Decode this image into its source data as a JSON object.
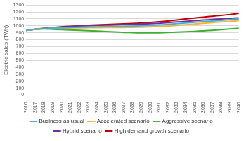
{
  "chart_data": {
    "type": "line",
    "y_label": "Electric sales (TWh)",
    "categories": [
      "2016",
      "2017",
      "2018",
      "2019",
      "2020",
      "2021",
      "2022",
      "2023",
      "2024",
      "2025",
      "2026",
      "2027",
      "2028",
      "2029",
      "2030",
      "2031",
      "2032",
      "2033",
      "2034",
      "2035",
      "2036",
      "2037",
      "2038",
      "2039",
      "2040"
    ],
    "series": [
      {
        "name": "Business as usual",
        "color": "#4bacd6",
        "values": [
          935,
          950,
          960,
          965,
          970,
          975,
          980,
          983,
          985,
          988,
          990,
          993,
          996,
          1000,
          1005,
          1012,
          1020,
          1030,
          1040,
          1050,
          1060,
          1070,
          1080,
          1090,
          1100
        ]
      },
      {
        "name": "Accelerated scenario",
        "color": "#f5b731",
        "values": [
          935,
          950,
          958,
          962,
          965,
          968,
          970,
          972,
          973,
          974,
          975,
          976,
          978,
          980,
          985,
          990,
          998,
          1005,
          1015,
          1025,
          1035,
          1045,
          1055,
          1065,
          1075
        ]
      },
      {
        "name": "Aggressive scenario",
        "color": "#3cb034",
        "values": [
          935,
          950,
          955,
          950,
          945,
          940,
          935,
          930,
          925,
          918,
          912,
          905,
          902,
          898,
          898,
          900,
          905,
          910,
          915,
          920,
          928,
          935,
          945,
          955,
          965
        ]
      },
      {
        "name": "Hybrid scenario",
        "color": "#7030a0",
        "values": [
          935,
          950,
          962,
          972,
          980,
          988,
          995,
          1000,
          1005,
          1010,
          1013,
          1017,
          1020,
          1025,
          1030,
          1037,
          1045,
          1055,
          1065,
          1075,
          1083,
          1092,
          1100,
          1108,
          1115
        ]
      },
      {
        "name": "High demand growth scenario",
        "color": "#c00000",
        "values": [
          935,
          950,
          962,
          975,
          985,
          993,
          1000,
          1008,
          1013,
          1018,
          1023,
          1028,
          1033,
          1040,
          1048,
          1058,
          1070,
          1085,
          1100,
          1113,
          1125,
          1138,
          1150,
          1163,
          1180
        ]
      }
    ],
    "ylim": [
      0,
      1300
    ],
    "yticks": [
      0,
      100,
      200,
      300,
      400,
      500,
      600,
      700,
      800,
      900,
      1000,
      1100,
      1200,
      1300
    ],
    "grid": true,
    "legend": "bottom"
  }
}
